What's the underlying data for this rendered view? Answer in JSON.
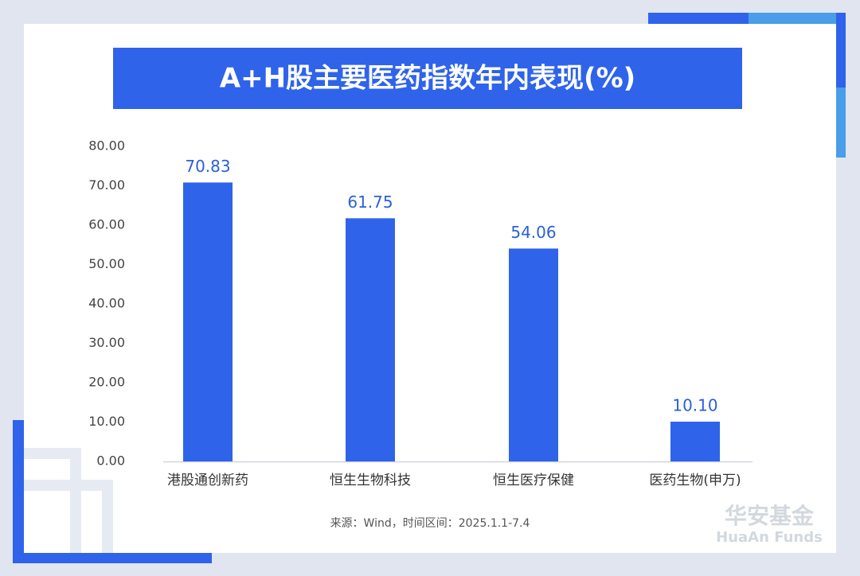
{
  "chart_data": {
    "type": "bar",
    "title": "A+H股主要医药指数年内表现(%)",
    "categories": [
      "港股通创新药",
      "恒生生物科技",
      "恒生医疗保健",
      "医药生物(申万)"
    ],
    "values": [
      70.83,
      61.75,
      54.06,
      10.1
    ],
    "value_labels": [
      "70.83",
      "61.75",
      "54.06",
      "10.10"
    ],
    "color": "#2f63ea",
    "ylim": [
      0,
      80
    ],
    "yticks": [
      {
        "value": 0,
        "label": "0.00"
      },
      {
        "value": 10,
        "label": "10.00"
      },
      {
        "value": 20,
        "label": "20.00"
      },
      {
        "value": 30,
        "label": "30.00"
      },
      {
        "value": 40,
        "label": "40.00"
      },
      {
        "value": 50,
        "label": "50.00"
      },
      {
        "value": 60,
        "label": "60.00"
      },
      {
        "value": 70,
        "label": "70.00"
      },
      {
        "value": 80,
        "label": "80.00"
      }
    ],
    "grid": false,
    "source": "来源：Wind，时间区间：2025.1.1-7.4",
    "brand": "华安基金",
    "brand_en": "HuaAn Funds"
  }
}
